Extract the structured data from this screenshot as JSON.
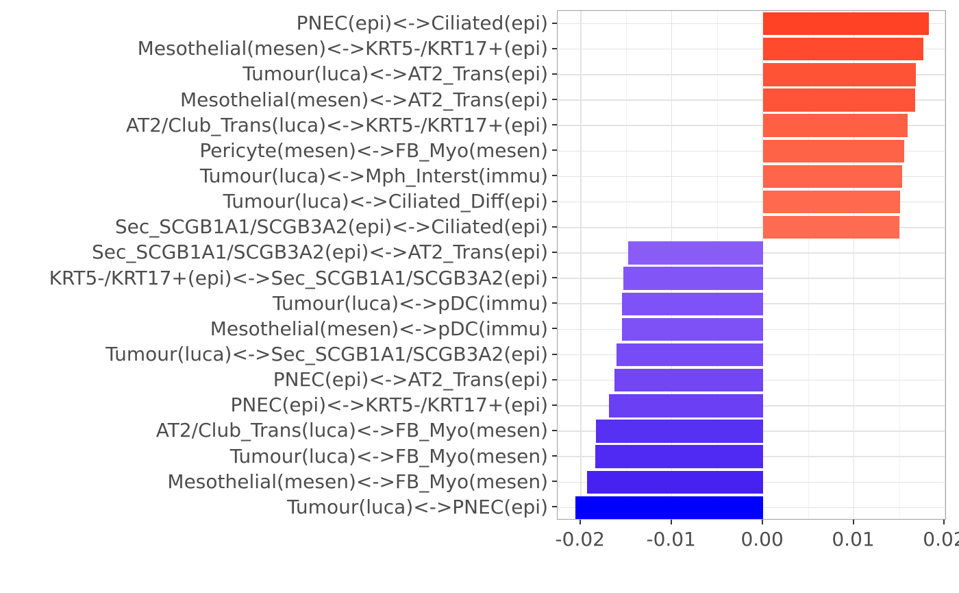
{
  "chart_data": {
    "type": "bar",
    "orientation": "horizontal",
    "title": "",
    "xlabel": "",
    "ylabel": "",
    "legend_position": "none",
    "grid": true,
    "xlim": [
      -0.02254,
      0.02019
    ],
    "x_major_ticks": [
      -0.02,
      -0.01,
      0.0,
      0.01,
      0.02
    ],
    "x_tick_labels": [
      "-0.02",
      "-0.01",
      "0.00",
      "0.01",
      "0.02"
    ],
    "x_minor_ticks": [
      -0.015,
      -0.005,
      0.005,
      0.015
    ],
    "bar_width_fraction": 0.9,
    "categories": [
      "PNEC(epi)<->Ciliated(epi)",
      "Mesothelial(mesen)<->KRT5-/KRT17+(epi)",
      "Tumour(luca)<->AT2_Trans(epi)",
      "Mesothelial(mesen)<->AT2_Trans(epi)",
      "AT2/Club_Trans(luca)<->KRT5-/KRT17+(epi)",
      "Pericyte(mesen)<->FB_Myo(mesen)",
      "Tumour(luca)<->Mph_Interst(immu)",
      "Tumour(luca)<->Ciliated_Diff(epi)",
      "Sec_SCGB1A1/SCGB3A2(epi)<->Ciliated(epi)",
      "Sec_SCGB1A1/SCGB3A2(epi)<->AT2_Trans(epi)",
      "KRT5-/KRT17+(epi)<->Sec_SCGB1A1/SCGB3A2(epi)",
      "Tumour(luca)<->pDC(immu)",
      "Mesothelial(mesen)<->pDC(immu)",
      "Tumour(luca)<->Sec_SCGB1A1/SCGB3A2(epi)",
      "PNEC(epi)<->AT2_Trans(epi)",
      "PNEC(epi)<->KRT5-/KRT17+(epi)",
      "AT2/Club_Trans(luca)<->FB_Myo(mesen)",
      "Tumour(luca)<->FB_Myo(mesen)",
      "Mesothelial(mesen)<->FB_Myo(mesen)",
      "Tumour(luca)<->PNEC(epi)"
    ],
    "values": [
      0.0182,
      0.0176,
      0.0168,
      0.0167,
      0.0159,
      0.0155,
      0.0153,
      0.0151,
      0.015,
      -0.0148,
      -0.0153,
      -0.0155,
      -0.0155,
      -0.0161,
      -0.0163,
      -0.0169,
      -0.0183,
      -0.0184,
      -0.0193,
      -0.0206
    ],
    "bar_colors": [
      "#FF4126",
      "#FF4A2E",
      "#FF5336",
      "#FF5437",
      "#FF5F42",
      "#FF6347",
      "#FF654A",
      "#FF6A4E",
      "#FF6B50",
      "#8A5CF6",
      "#8256F6",
      "#7E52F6",
      "#7D51F6",
      "#774BF5",
      "#7245F5",
      "#6B3FF4",
      "#5630F3",
      "#502AF2",
      "#4621F0",
      "#0000FF"
    ],
    "colors": {
      "axis_text": "#4D4D4D",
      "tick_mark": "#333333",
      "panel_border": "#A0A0A0",
      "grid_major": "#E3E3E3",
      "grid_minor": "#F0F0F0",
      "background": "#FFFFFF"
    }
  }
}
